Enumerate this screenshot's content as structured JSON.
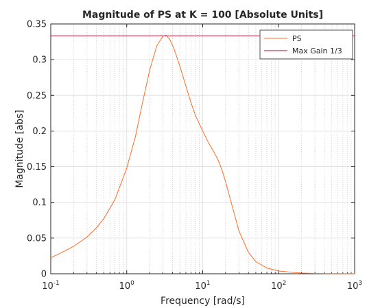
{
  "chart_data": {
    "type": "line",
    "title": "Magnitude of PS at K = 100 [Absolute Units]",
    "xlabel": "Frequency [rad/s]",
    "ylabel": "Magnitude [abs]",
    "xscale": "log",
    "xlim": [
      0.1,
      1000
    ],
    "ylim": [
      0,
      0.35
    ],
    "x_ticks": [
      {
        "value": 0.1,
        "base": "10",
        "exp": "-1"
      },
      {
        "value": 1,
        "base": "10",
        "exp": "0"
      },
      {
        "value": 10,
        "base": "10",
        "exp": "1"
      },
      {
        "value": 100,
        "base": "10",
        "exp": "2"
      },
      {
        "value": 1000,
        "base": "10",
        "exp": "3"
      }
    ],
    "y_ticks": [
      {
        "value": 0,
        "label": "0"
      },
      {
        "value": 0.05,
        "label": "0.05"
      },
      {
        "value": 0.1,
        "label": "0.1"
      },
      {
        "value": 0.15,
        "label": "0.15"
      },
      {
        "value": 0.2,
        "label": "0.2"
      },
      {
        "value": 0.25,
        "label": "0.25"
      },
      {
        "value": 0.3,
        "label": "0.3"
      },
      {
        "value": 0.35,
        "label": "0.35"
      }
    ],
    "grid": true,
    "minor_grid": true,
    "legend_position": "top-right",
    "series": [
      {
        "name": "PS",
        "color": "#ff6a26",
        "x": [
          0.1,
          0.15,
          0.2,
          0.3,
          0.4,
          0.5,
          0.7,
          1.0,
          1.3,
          1.6,
          2.0,
          2.5,
          3.0,
          3.3,
          3.7,
          4.2,
          5.0,
          6.0,
          7.0,
          8.0,
          10.0,
          12.0,
          14.0,
          16.0,
          18.0,
          20.0,
          25.0,
          30.0,
          40.0,
          50.0,
          70.0,
          100.0,
          150.0,
          200.0,
          300.0,
          500.0,
          1000.0
        ],
        "y": [
          0.0225,
          0.0315,
          0.0385,
          0.0515,
          0.0645,
          0.0775,
          0.104,
          0.148,
          0.192,
          0.238,
          0.285,
          0.32,
          0.333,
          0.334,
          0.328,
          0.315,
          0.291,
          0.263,
          0.24,
          0.222,
          0.2,
          0.183,
          0.171,
          0.159,
          0.145,
          0.129,
          0.091,
          0.06,
          0.03,
          0.017,
          0.008,
          0.004,
          0.002,
          0.001,
          0.0005,
          0.0002,
          0.0001
        ]
      },
      {
        "name": "Max Gain 1/3",
        "color": "#a2142f",
        "x": [
          0.1,
          1000
        ],
        "y": [
          0.3333,
          0.3333
        ]
      }
    ]
  }
}
